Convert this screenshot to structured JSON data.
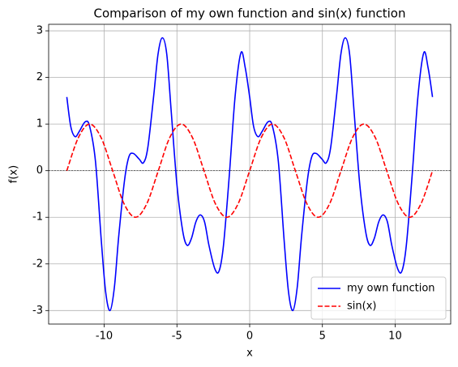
{
  "chart_data": {
    "type": "line",
    "title": "Comparison of my own function and sin(x) function",
    "xlabel": "x",
    "ylabel": "f(x)",
    "xlim": [
      -13.82,
      13.82
    ],
    "ylim": [
      -3.29,
      3.14
    ],
    "xticks": [
      -10,
      -5,
      0,
      5,
      10
    ],
    "yticks": [
      -3,
      -2,
      -1,
      0,
      1,
      2,
      3
    ],
    "grid": true,
    "hline": 0,
    "legend": "lower right",
    "series": [
      {
        "name": "my own function",
        "color": "#0000ff",
        "dash": "solid",
        "x": [
          -12.57,
          -12.3,
          -12.0,
          -11.7,
          -11.3,
          -11.0,
          -10.6,
          -10.2,
          -9.9,
          -9.6,
          -9.3,
          -9.0,
          -8.6,
          -8.3,
          -8.0,
          -7.6,
          -7.3,
          -7.0,
          -6.6,
          -6.3,
          -6.0,
          -5.7,
          -5.4,
          -5.0,
          -4.6,
          -4.3,
          -4.0,
          -3.7,
          -3.4,
          -3.1,
          -2.8,
          -2.4,
          -2.1,
          -1.8,
          -1.4,
          -1.0,
          -0.6,
          -0.3,
          0,
          0.27,
          0.57,
          0.87,
          1.27,
          1.57,
          1.97,
          2.37,
          2.67,
          2.97,
          3.27,
          3.57,
          3.97,
          4.27,
          4.57,
          4.97,
          5.27,
          5.57,
          5.97,
          6.27,
          6.57,
          6.87,
          7.17,
          7.57,
          7.97,
          8.27,
          8.57,
          8.87,
          9.17,
          9.47,
          9.77,
          10.17,
          10.47,
          10.77,
          11.17,
          11.57,
          11.97,
          12.27,
          12.57
        ],
        "values": [
          1.58,
          0.95,
          0.73,
          0.85,
          1.05,
          0.95,
          0.2,
          -1.5,
          -2.6,
          -3.0,
          -2.5,
          -1.4,
          -0.2,
          0.3,
          0.37,
          0.25,
          0.17,
          0.5,
          1.6,
          2.5,
          2.85,
          2.5,
          1.3,
          -0.3,
          -1.3,
          -1.6,
          -1.45,
          -1.1,
          -0.95,
          -1.1,
          -1.6,
          -2.1,
          -2.15,
          -1.6,
          -0.1,
          1.6,
          2.53,
          2.2,
          1.58,
          0.95,
          0.73,
          0.85,
          1.05,
          0.95,
          0.2,
          -1.5,
          -2.6,
          -3.0,
          -2.5,
          -1.4,
          -0.2,
          0.3,
          0.37,
          0.25,
          0.17,
          0.5,
          1.6,
          2.5,
          2.85,
          2.5,
          1.3,
          -0.3,
          -1.3,
          -1.6,
          -1.45,
          -1.1,
          -0.95,
          -1.1,
          -1.6,
          -2.1,
          -2.15,
          -1.6,
          -0.1,
          1.6,
          2.53,
          2.2,
          1.58
        ]
      },
      {
        "name": "sin(x)",
        "color": "#ff0000",
        "dash": "dashed",
        "x": [
          -12.57,
          -11.78,
          -11.0,
          -10.21,
          -9.42,
          -8.64,
          -7.85,
          -7.07,
          -6.28,
          -5.5,
          -4.71,
          -3.93,
          -3.14,
          -2.36,
          -1.57,
          -0.79,
          0,
          0.79,
          1.57,
          2.36,
          3.14,
          3.93,
          4.71,
          5.5,
          6.28,
          7.07,
          7.85,
          8.64,
          9.42,
          10.21,
          11.0,
          11.78,
          12.57
        ],
        "values": [
          0,
          0.707,
          1,
          0.707,
          0,
          -0.707,
          -1,
          -0.707,
          0,
          0.707,
          1,
          0.707,
          0,
          -0.707,
          -1,
          -0.707,
          0,
          0.707,
          1,
          0.707,
          0,
          -0.707,
          -1,
          -0.707,
          0,
          0.707,
          1,
          0.707,
          0,
          -0.707,
          -1,
          -0.707,
          0
        ]
      }
    ]
  }
}
